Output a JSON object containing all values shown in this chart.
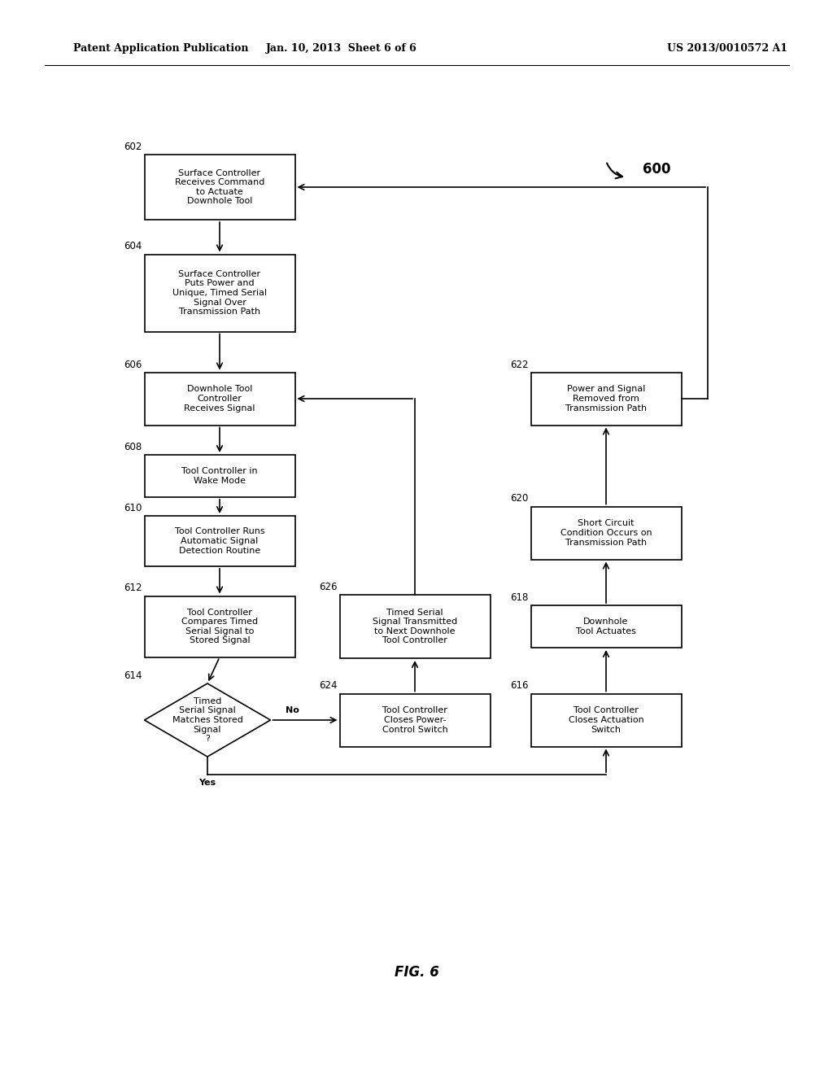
{
  "title_left": "Patent Application Publication",
  "title_mid": "Jan. 10, 2013  Sheet 6 of 6",
  "title_right": "US 2013/0010572 A1",
  "fig_label": "FIG. 6",
  "background_color": "#ffffff",
  "fontsize": 8.0,
  "label_fontsize": 8.5,
  "header_fontsize": 9.0
}
